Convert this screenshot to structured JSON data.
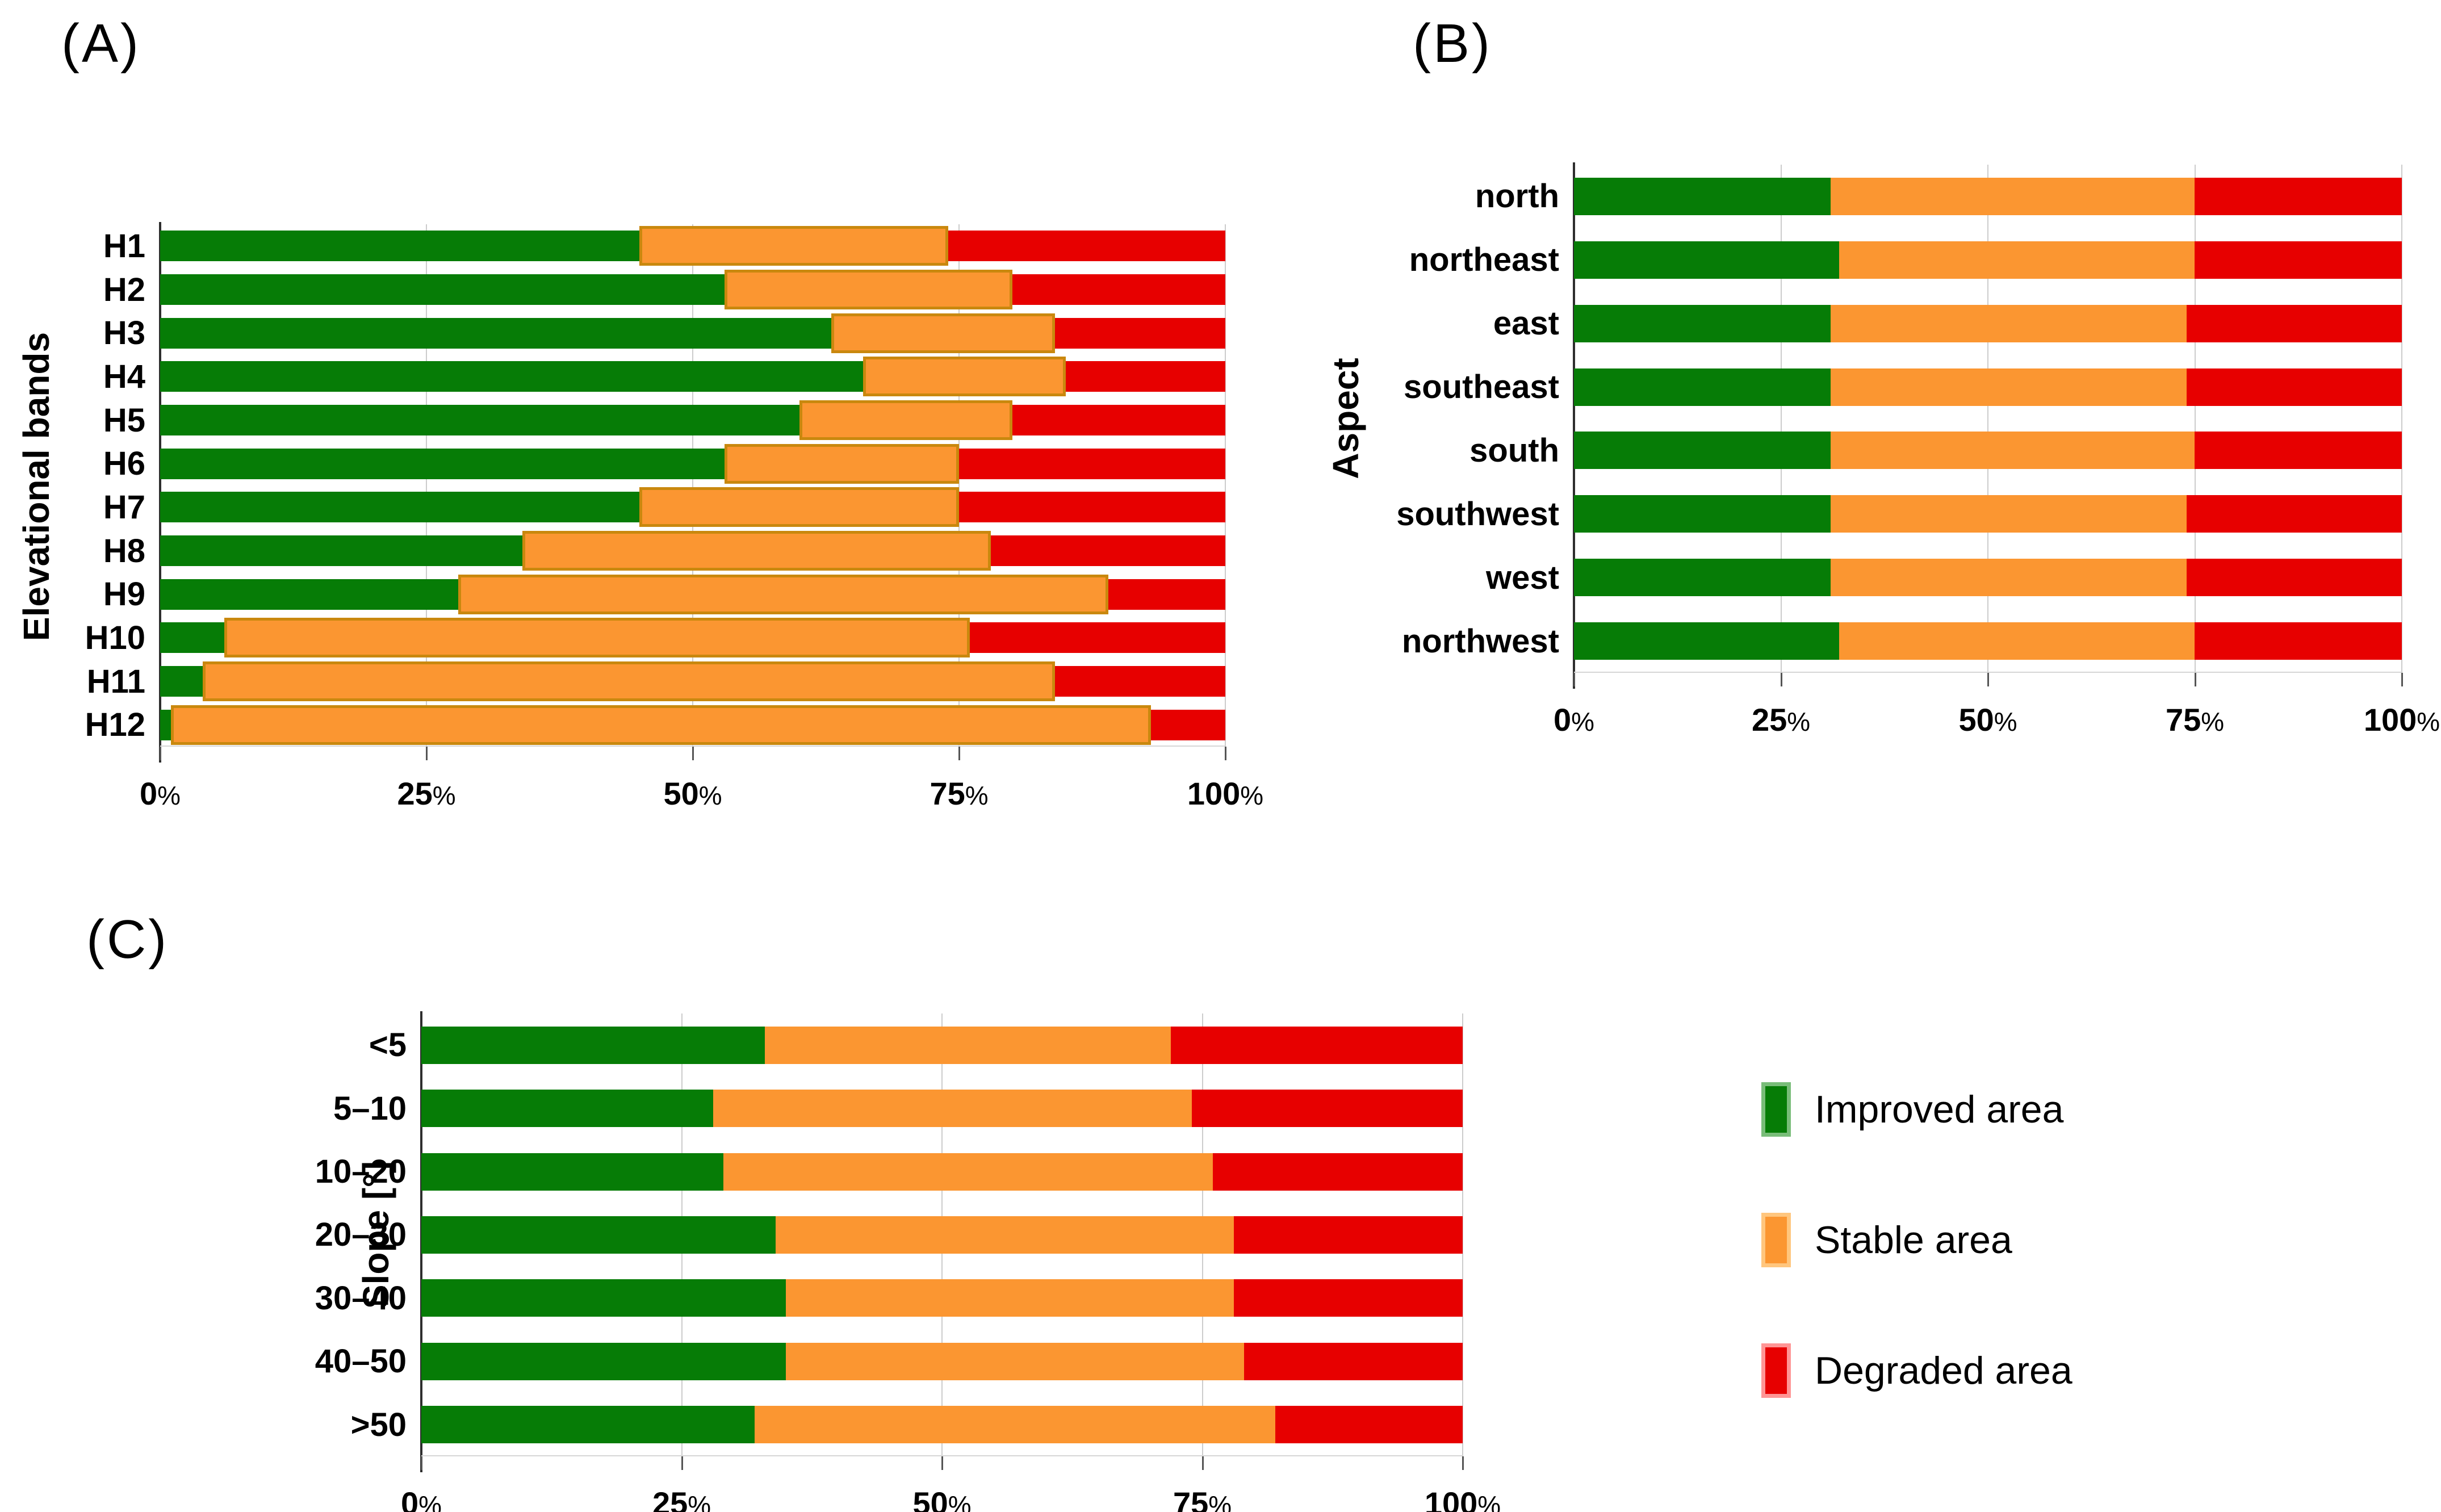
{
  "figure": {
    "background": "#ffffff"
  },
  "colors": {
    "improved": "#067c06",
    "stable": "#fb9631",
    "stable_border": "#c9880e",
    "degraded": "#e70000",
    "gridline": "#cccccc",
    "axis": "#2e2e2e"
  },
  "legend": {
    "items": [
      {
        "key": "improved",
        "label": "Improved area"
      },
      {
        "key": "stable",
        "label": "Stable area"
      },
      {
        "key": "degraded",
        "label": "Degraded area"
      }
    ]
  },
  "chart_data": [
    {
      "id": "A",
      "panel_label": "(A)",
      "type": "bar",
      "stacked": true,
      "orientation": "horizontal",
      "ylabel": "Elevational bands",
      "xlabel": "",
      "xlim": [
        0,
        100
      ],
      "grid": true,
      "stable_border": true,
      "x_ticks": [
        "0%",
        "25%",
        "50%",
        "75%",
        "100%"
      ],
      "categories": [
        "H1",
        "H2",
        "H3",
        "H4",
        "H5",
        "H6",
        "H7",
        "H8",
        "H9",
        "H10",
        "H11",
        "H12"
      ],
      "series": [
        {
          "name": "Improved area",
          "key": "improved",
          "values": [
            45,
            53,
            63,
            66,
            60,
            53,
            45,
            34,
            28,
            6,
            4,
            1
          ]
        },
        {
          "name": "Stable area",
          "key": "stable",
          "values": [
            29,
            27,
            21,
            19,
            20,
            22,
            30,
            44,
            61,
            70,
            80,
            92
          ]
        },
        {
          "name": "Degraded area",
          "key": "degraded",
          "values": [
            26,
            20,
            16,
            15,
            20,
            25,
            25,
            22,
            11,
            24,
            16,
            7
          ]
        }
      ]
    },
    {
      "id": "B",
      "panel_label": "(B)",
      "type": "bar",
      "stacked": true,
      "orientation": "horizontal",
      "ylabel": "Aspect",
      "xlabel": "",
      "xlim": [
        0,
        100
      ],
      "grid": true,
      "stable_border": false,
      "x_ticks": [
        "0%",
        "25%",
        "50%",
        "75%",
        "100%"
      ],
      "categories": [
        "north",
        "northeast",
        "east",
        "southeast",
        "south",
        "southwest",
        "west",
        "northwest"
      ],
      "series": [
        {
          "name": "Improved area",
          "key": "improved",
          "values": [
            31,
            32,
            31,
            31,
            31,
            31,
            31,
            32
          ]
        },
        {
          "name": "Stable area",
          "key": "stable",
          "values": [
            44,
            43,
            43,
            43,
            44,
            43,
            43,
            43
          ]
        },
        {
          "name": "Degraded area",
          "key": "degraded",
          "values": [
            25,
            25,
            26,
            26,
            25,
            26,
            26,
            25
          ]
        }
      ]
    },
    {
      "id": "C",
      "panel_label": "(C)",
      "type": "bar",
      "stacked": true,
      "orientation": "horizontal",
      "ylabel": "Slope [°]",
      "xlabel": "",
      "xlim": [
        0,
        100
      ],
      "grid": true,
      "stable_border": false,
      "x_ticks": [
        "0%",
        "25%",
        "50%",
        "75%",
        "100%"
      ],
      "categories": [
        "<5",
        "5–10",
        "10–20",
        "20–30",
        "30–40",
        "40–50",
        ">50"
      ],
      "series": [
        {
          "name": "Improved area",
          "key": "improved",
          "values": [
            33,
            28,
            29,
            34,
            35,
            35,
            32
          ]
        },
        {
          "name": "Stable area",
          "key": "stable",
          "values": [
            39,
            46,
            47,
            44,
            43,
            44,
            50
          ]
        },
        {
          "name": "Degraded area",
          "key": "degraded",
          "values": [
            28,
            26,
            24,
            22,
            22,
            21,
            18
          ]
        }
      ]
    }
  ]
}
